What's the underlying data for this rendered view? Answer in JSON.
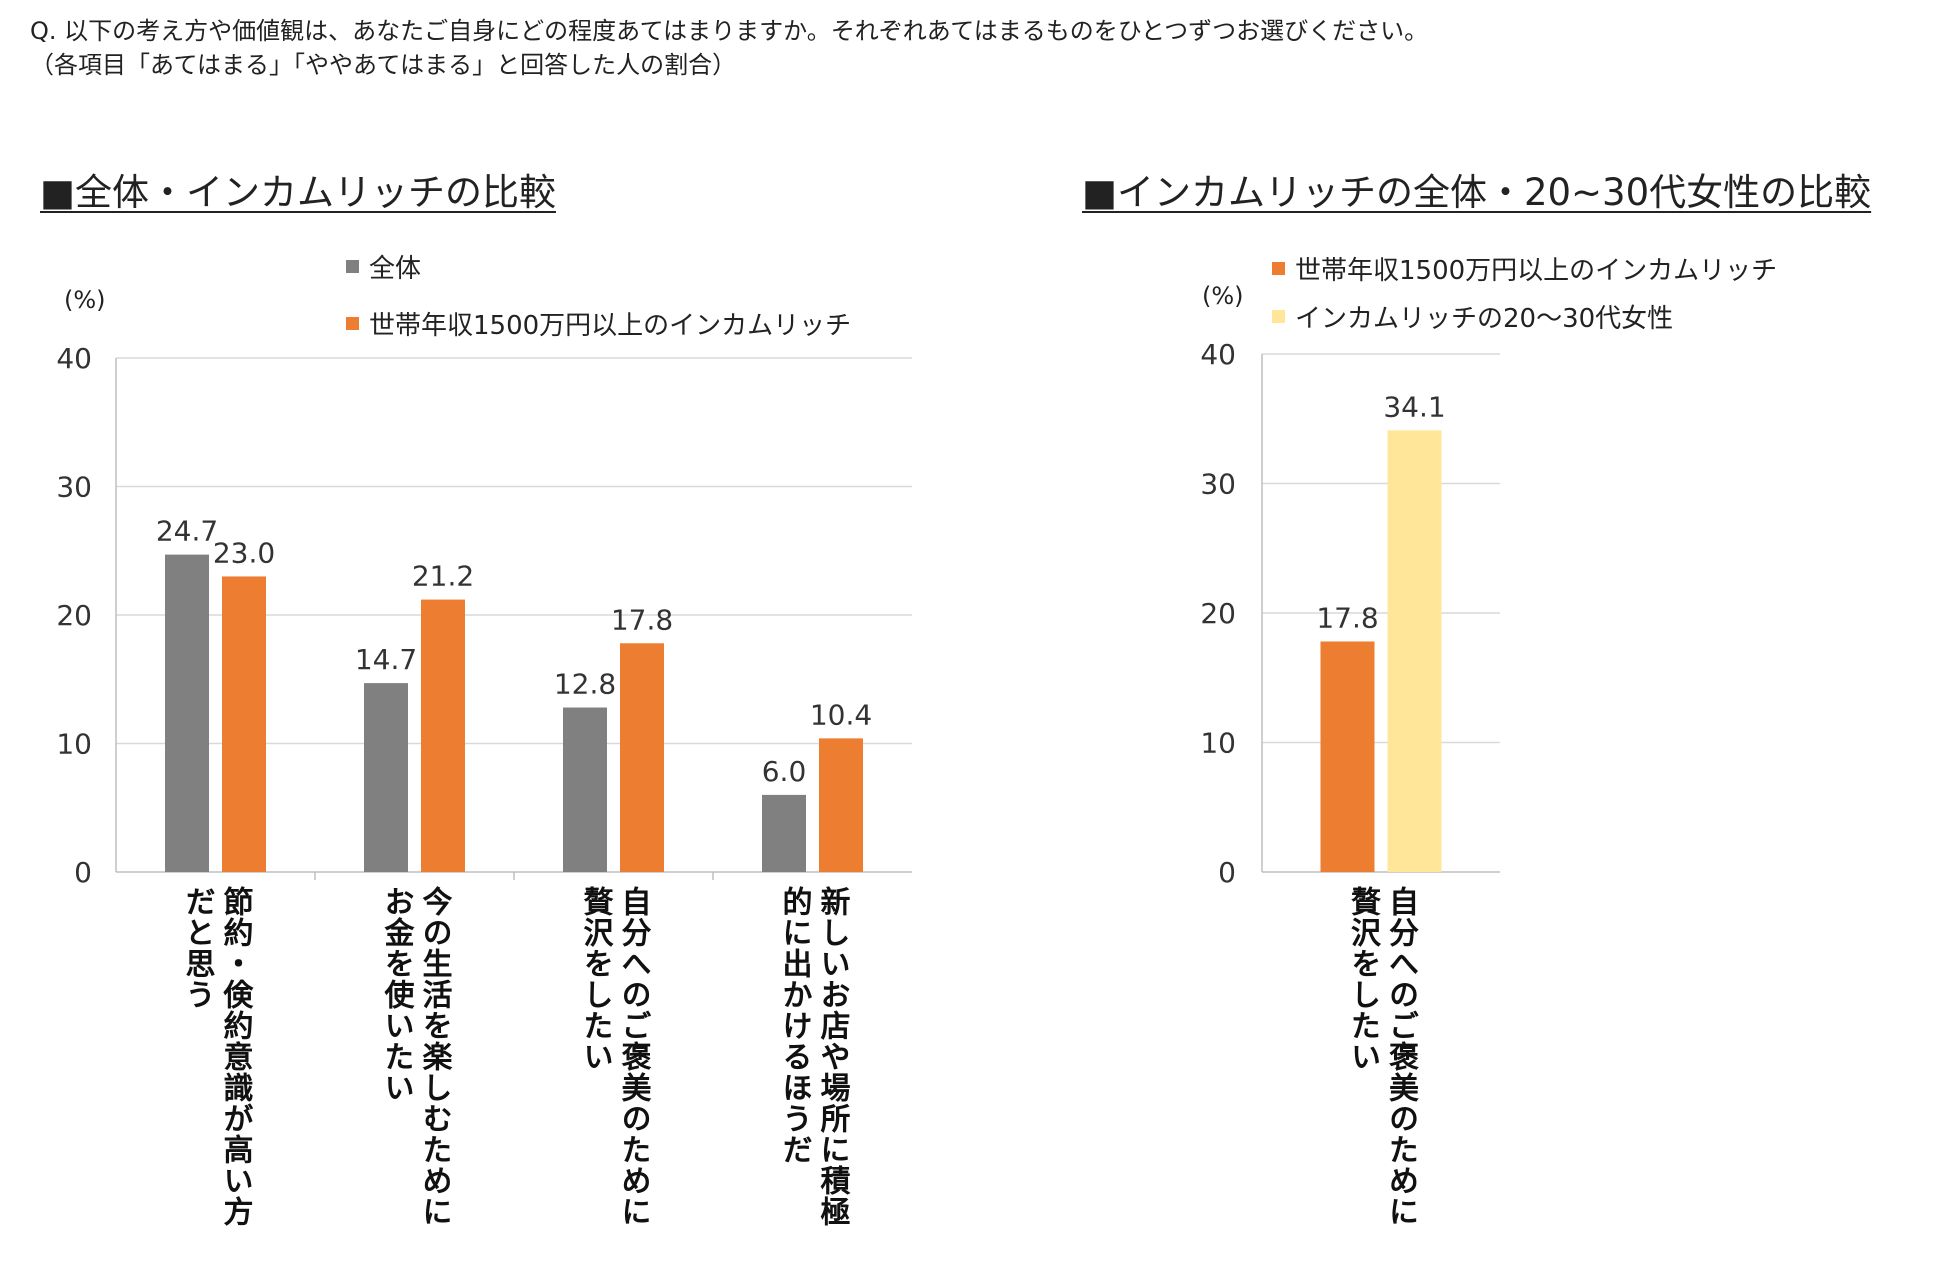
{
  "question": {
    "line1": "Q. 以下の考え方や価値観は、あなたご自身にどの程度あてはまりますか。それぞれあてはまるものをひとつずつお選びください。",
    "line2": "（各項目「あてはまる」「ややあてはまる」と回答した人の割合）"
  },
  "colors": {
    "gray": "#808080",
    "orange": "#ED7D31",
    "yellow": "#FFE699",
    "grid": "#d9d9d9",
    "axis": "#bfbfbf"
  },
  "chart_data": [
    {
      "type": "bar",
      "title": "■全体・インカムリッチの比較",
      "unit": "(%)",
      "ylim": [
        0,
        40
      ],
      "yticks": [
        "0",
        "10",
        "20",
        "30",
        "40"
      ],
      "categories": [
        [
          "節約・倹約意識が高い方",
          "だと思う"
        ],
        [
          "今の生活を楽しむために",
          "お金を使いたい"
        ],
        [
          "自分へのご褒美のために",
          "贅沢をしたい"
        ],
        [
          "新しいお店や場所に積極",
          "的に出かけるほうだ"
        ]
      ],
      "series": [
        {
          "name": "全体",
          "color": "#808080",
          "values": [
            24.7,
            14.7,
            12.8,
            6.0
          ],
          "labels": [
            "24.7",
            "14.7",
            "12.8",
            "6.0"
          ]
        },
        {
          "name": "世帯年収1500万円以上のインカムリッチ",
          "color": "#ED7D31",
          "values": [
            23.0,
            21.2,
            17.8,
            10.4
          ],
          "labels": [
            "23.0",
            "21.2",
            "17.8",
            "10.4"
          ]
        }
      ]
    },
    {
      "type": "bar",
      "title": "■インカムリッチの全体・20~30代女性の比較",
      "unit": "(%)",
      "ylim": [
        0,
        40
      ],
      "yticks": [
        "0",
        "10",
        "20",
        "30",
        "40"
      ],
      "categories": [
        [
          "自分へのご褒美のために",
          "贅沢をしたい"
        ]
      ],
      "series": [
        {
          "name": "世帯年収1500万円以上のインカムリッチ",
          "color": "#ED7D31",
          "values": [
            17.8
          ],
          "labels": [
            "17.8"
          ]
        },
        {
          "name": "インカムリッチの20〜30代女性",
          "color": "#FFE699",
          "values": [
            34.1
          ],
          "labels": [
            "34.1"
          ]
        }
      ]
    }
  ]
}
